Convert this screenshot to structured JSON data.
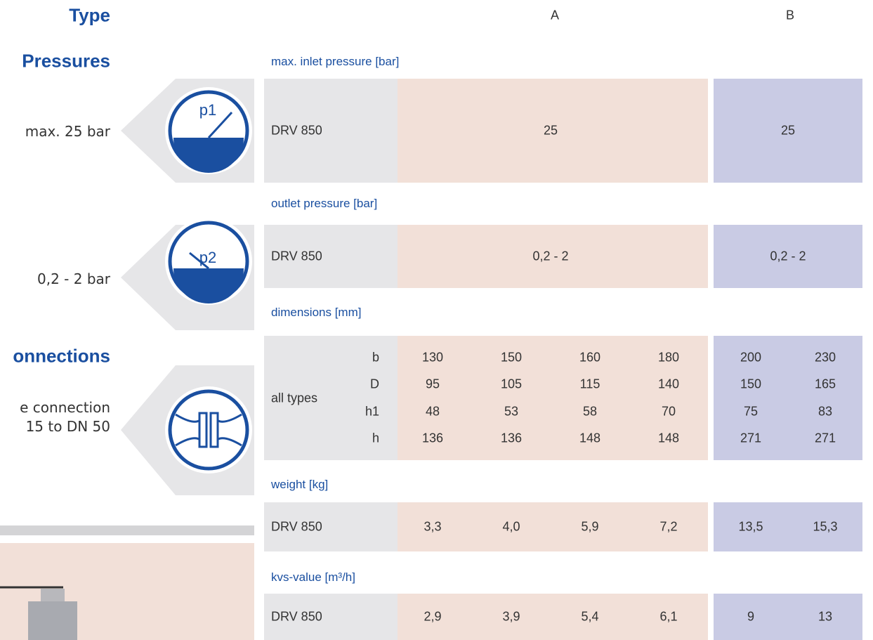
{
  "side": {
    "type_heading": "Type",
    "pressures_heading": "Pressures",
    "inlet_note": "max. 25 bar",
    "inlet_icon": "p1",
    "outlet_note": "0,2 - 2 bar",
    "outlet_icon": "p2",
    "connections_heading": "onnections",
    "connection_note": [
      "e connection",
      "15 to DN 50"
    ]
  },
  "columns": [
    "A",
    "B"
  ],
  "sections": [
    {
      "title": "max. inlet pressure [bar]",
      "label": "DRV 850",
      "rows": [
        {
          "a": [
            "25"
          ],
          "b": [
            "25"
          ]
        }
      ]
    },
    {
      "title": "outlet pressure [bar]",
      "label": "DRV 850",
      "rows": [
        {
          "a": [
            "0,2 - 2"
          ],
          "b": [
            "0,2 - 2"
          ]
        }
      ]
    },
    {
      "title": "dimensions [mm]",
      "label": "all types",
      "rows": [
        {
          "sub": "b",
          "a": [
            "130",
            "150",
            "160",
            "180"
          ],
          "b": [
            "200",
            "230"
          ]
        },
        {
          "sub": "D",
          "a": [
            "95",
            "105",
            "115",
            "140"
          ],
          "b": [
            "150",
            "165"
          ]
        },
        {
          "sub": "h1",
          "a": [
            "48",
            "53",
            "58",
            "70"
          ],
          "b": [
            "75",
            "83"
          ]
        },
        {
          "sub": "h",
          "a": [
            "136",
            "136",
            "148",
            "148"
          ],
          "b": [
            "271",
            "271"
          ]
        }
      ]
    },
    {
      "title": "weight [kg]",
      "label": "DRV 850",
      "rows": [
        {
          "a": [
            "3,3",
            "4,0",
            "5,9",
            "7,2"
          ],
          "b": [
            "13,5",
            "15,3"
          ]
        }
      ]
    },
    {
      "title": "kvs-value [m³/h]",
      "label": "DRV 850",
      "rows": [
        {
          "a": [
            "2,9",
            "3,9",
            "5,4",
            "6,1"
          ],
          "b": [
            "9",
            "13"
          ]
        }
      ]
    }
  ]
}
